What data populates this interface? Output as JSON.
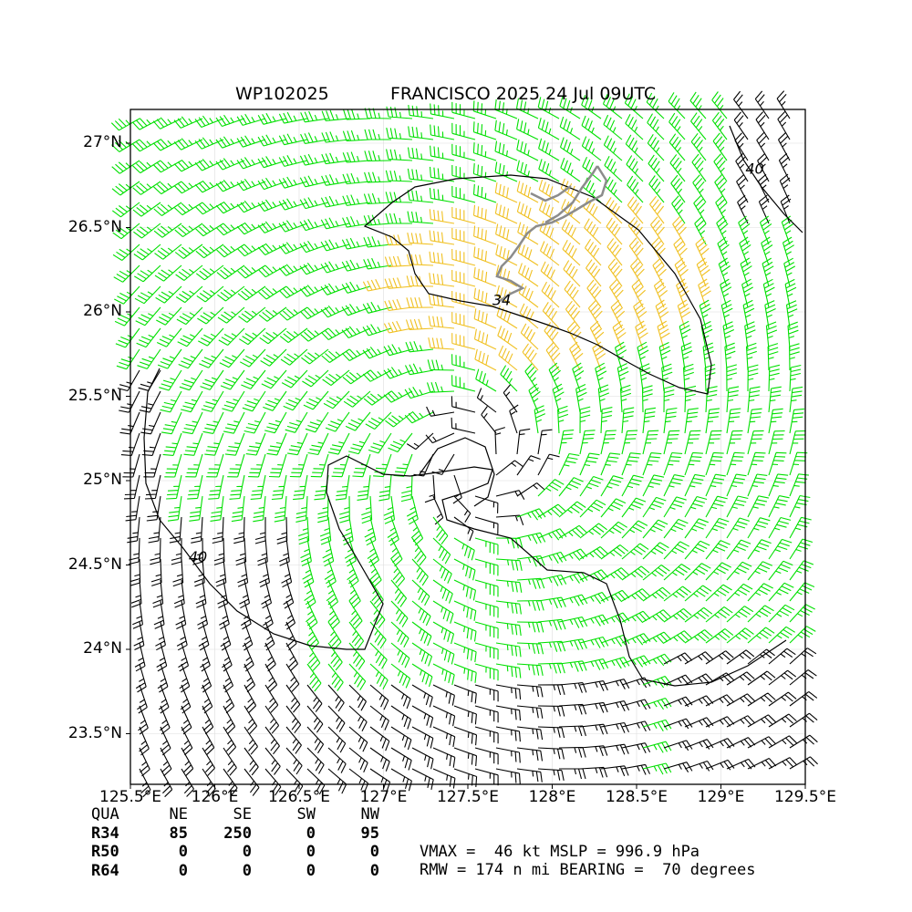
{
  "title": {
    "storm_id": "WP102025",
    "storm_info": "FRANCISCO 2025 24 Jul 09UTC"
  },
  "axes": {
    "lon_ticks": [
      "125.5°E",
      "126°E",
      "126.5°E",
      "127°E",
      "127.5°E",
      "128°E",
      "128.5°E",
      "129°E",
      "129.5°E"
    ],
    "lat_ticks": [
      "27°N",
      "26.5°N",
      "26°N",
      "25.5°N",
      "25°N",
      "24.5°N",
      "24°N",
      "23.5°N"
    ],
    "lon_range": [
      125.5,
      129.5
    ],
    "lat_range": [
      23.2,
      27.2
    ]
  },
  "center": {
    "lon": 127.55,
    "lat": 25.12
  },
  "contour_labels": [
    {
      "text": "34",
      "lon": 127.7,
      "lat": 26.04
    },
    {
      "text": "40",
      "lon": 125.9,
      "lat": 24.52
    },
    {
      "text": "40",
      "lon": 129.2,
      "lat": 26.82
    }
  ],
  "colors": {
    "barb_black": "#000000",
    "barb_34kt": "#00e000",
    "barb_50kt": "#f0c020",
    "contour": "#000000",
    "coast": "#8c8c8c"
  },
  "radii_table": {
    "header": [
      "QUA",
      "NE",
      "SE",
      "SW",
      "NW"
    ],
    "rows": [
      {
        "label": "R34",
        "values": [
          "85",
          "250",
          "0",
          "95"
        ]
      },
      {
        "label": "R50",
        "values": [
          "0",
          "0",
          "0",
          "0"
        ]
      },
      {
        "label": "R64",
        "values": [
          "0",
          "0",
          "0",
          "0"
        ]
      }
    ]
  },
  "stats": {
    "line1": "VMAX =  46 kt MSLP = 996.9 hPa",
    "line2": "RMW = 174 n mi BEARING =  70 degrees"
  }
}
